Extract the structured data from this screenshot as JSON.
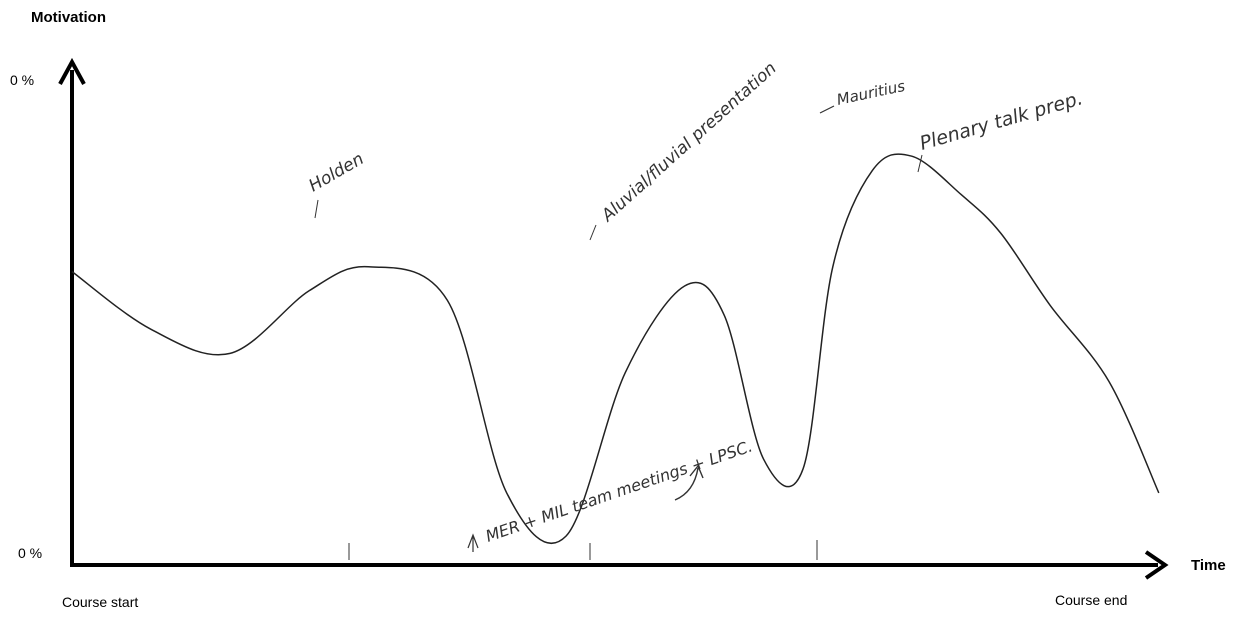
{
  "chart_data": {
    "type": "line",
    "ylabel": "Motivation",
    "xlabel": "Time",
    "y_top_tick": "0 %",
    "y_bottom_tick": "0 %",
    "x_start_label": "Course start",
    "x_end_label": "Course end",
    "annotations": [
      {
        "text": "Holden"
      },
      {
        "text": "Aluvial/fluvial presentation"
      },
      {
        "text": "Mauritius"
      },
      {
        "text": "Plenary talk prep."
      },
      {
        "text": "MER + MIL team meetings + LPSC."
      }
    ],
    "series": [
      {
        "x": [
          0,
          0.08,
          0.16,
          0.24,
          0.3,
          0.38,
          0.44,
          0.5,
          0.56,
          0.62,
          0.66,
          0.7,
          0.74,
          0.77,
          0.81,
          0.85,
          0.9,
          0.94,
          0.99,
          1.05,
          1.1
        ],
        "y": [
          0.61,
          0.49,
          0.44,
          0.57,
          0.62,
          0.55,
          0.15,
          0.06,
          0.4,
          0.58,
          0.52,
          0.22,
          0.2,
          0.62,
          0.82,
          0.85,
          0.77,
          0.69,
          0.54,
          0.38,
          0.15
        ]
      }
    ]
  }
}
